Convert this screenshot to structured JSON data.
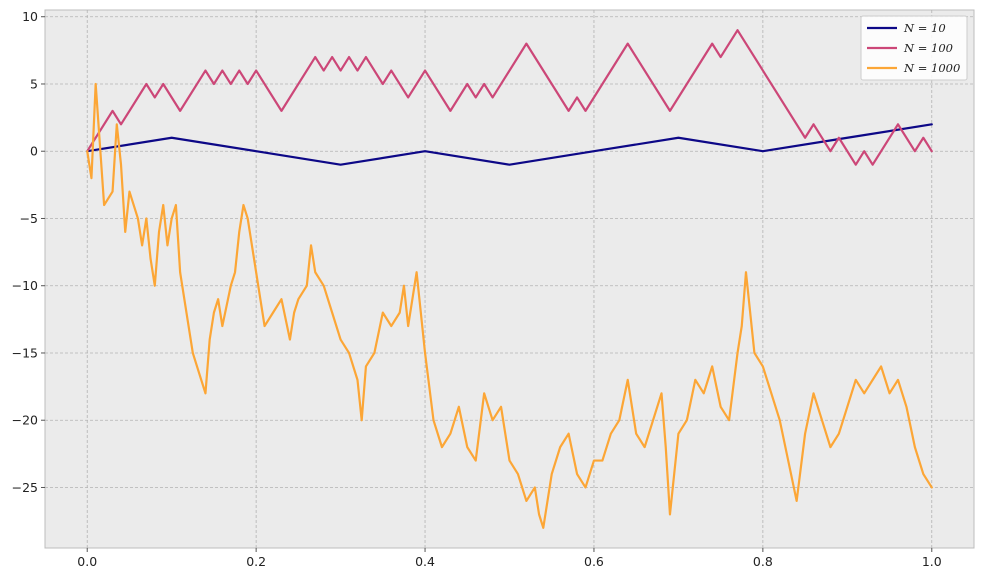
{
  "chart_data": {
    "type": "line",
    "title": "",
    "xlabel": "",
    "ylabel": "",
    "xlim": [
      -0.05,
      1.05
    ],
    "ylim": [
      -29.5,
      10.5
    ],
    "xticks": [
      0.0,
      0.2,
      0.4,
      0.6,
      0.8,
      1.0
    ],
    "xtick_labels": [
      "0.0",
      "0.2",
      "0.4",
      "0.6",
      "0.8",
      "1.0"
    ],
    "yticks": [
      10,
      5,
      0,
      -5,
      -10,
      -15,
      -20,
      -25
    ],
    "ytick_labels": [
      "10",
      "5",
      "0",
      "−5",
      "−10",
      "−15",
      "−20",
      "−25"
    ],
    "grid": true,
    "legend_position": "top-right",
    "series": [
      {
        "name": "N=10",
        "label": "N = 10",
        "color": "#0d0887",
        "x": [
          0,
          0.1,
          0.2,
          0.3,
          0.4,
          0.5,
          0.6,
          0.7,
          0.8,
          0.9,
          1.0
        ],
        "y": [
          0,
          1,
          0,
          -1,
          0,
          -1,
          0,
          1,
          0,
          1,
          2
        ]
      },
      {
        "name": "N=100",
        "label": "N = 100",
        "color": "#cc4778",
        "x": [
          0,
          0.03,
          0.04,
          0.07,
          0.08,
          0.09,
          0.11,
          0.14,
          0.15,
          0.16,
          0.17,
          0.18,
          0.19,
          0.2,
          0.23,
          0.27,
          0.28,
          0.29,
          0.3,
          0.31,
          0.32,
          0.33,
          0.35,
          0.36,
          0.38,
          0.4,
          0.43,
          0.45,
          0.46,
          0.47,
          0.48,
          0.52,
          0.57,
          0.58,
          0.59,
          0.64,
          0.69,
          0.74,
          0.75,
          0.77,
          0.85,
          0.86,
          0.88,
          0.89,
          0.91,
          0.92,
          0.93,
          0.96,
          0.98,
          0.99,
          1.0
        ],
        "y": [
          0,
          3,
          2,
          5,
          4,
          5,
          3,
          6,
          5,
          6,
          5,
          6,
          5,
          6,
          3,
          7,
          6,
          7,
          6,
          7,
          6,
          7,
          5,
          6,
          4,
          6,
          3,
          5,
          4,
          5,
          4,
          8,
          3,
          4,
          3,
          8,
          3,
          8,
          7,
          9,
          1,
          2,
          0,
          1,
          -1,
          0,
          -1,
          2,
          0,
          1,
          0
        ]
      },
      {
        "name": "N=1000",
        "label": "N = 1000",
        "color": "#fca636",
        "x": [
          0,
          0.005,
          0.01,
          0.02,
          0.03,
          0.035,
          0.04,
          0.045,
          0.05,
          0.06,
          0.065,
          0.07,
          0.075,
          0.08,
          0.085,
          0.09,
          0.095,
          0.1,
          0.105,
          0.11,
          0.12,
          0.125,
          0.13,
          0.14,
          0.145,
          0.15,
          0.155,
          0.16,
          0.17,
          0.175,
          0.18,
          0.185,
          0.19,
          0.2,
          0.205,
          0.21,
          0.22,
          0.23,
          0.24,
          0.245,
          0.25,
          0.26,
          0.265,
          0.27,
          0.28,
          0.29,
          0.3,
          0.31,
          0.32,
          0.325,
          0.33,
          0.34,
          0.35,
          0.36,
          0.37,
          0.375,
          0.38,
          0.39,
          0.4,
          0.41,
          0.42,
          0.43,
          0.44,
          0.45,
          0.46,
          0.47,
          0.48,
          0.49,
          0.5,
          0.51,
          0.52,
          0.53,
          0.535,
          0.54,
          0.55,
          0.56,
          0.57,
          0.58,
          0.59,
          0.6,
          0.61,
          0.62,
          0.63,
          0.64,
          0.65,
          0.66,
          0.67,
          0.68,
          0.685,
          0.69,
          0.7,
          0.71,
          0.72,
          0.73,
          0.74,
          0.75,
          0.76,
          0.77,
          0.775,
          0.78,
          0.79,
          0.8,
          0.81,
          0.82,
          0.83,
          0.84,
          0.85,
          0.86,
          0.87,
          0.88,
          0.89,
          0.9,
          0.91,
          0.92,
          0.93,
          0.94,
          0.95,
          0.96,
          0.97,
          0.98,
          0.99,
          1.0
        ],
        "y": [
          0,
          -2,
          5,
          -4,
          -3,
          2,
          -1,
          -6,
          -3,
          -5,
          -7,
          -5,
          -8,
          -10,
          -6,
          -4,
          -7,
          -5,
          -4,
          -9,
          -13,
          -15,
          -16,
          -18,
          -14,
          -12,
          -11,
          -13,
          -10,
          -9,
          -6,
          -4,
          -5,
          -9,
          -11,
          -13,
          -12,
          -11,
          -14,
          -12,
          -11,
          -10,
          -7,
          -9,
          -10,
          -12,
          -14,
          -15,
          -17,
          -20,
          -16,
          -15,
          -12,
          -13,
          -12,
          -10,
          -13,
          -9,
          -15,
          -20,
          -22,
          -21,
          -19,
          -22,
          -23,
          -18,
          -20,
          -19,
          -23,
          -24,
          -26,
          -25,
          -27,
          -28,
          -24,
          -22,
          -21,
          -24,
          -25,
          -23,
          -23,
          -21,
          -20,
          -17,
          -21,
          -22,
          -20,
          -18,
          -22,
          -27,
          -21,
          -20,
          -17,
          -18,
          -16,
          -19,
          -20,
          -15,
          -13,
          -9,
          -15,
          -16,
          -18,
          -20,
          -23,
          -26,
          -21,
          -18,
          -20,
          -22,
          -21,
          -19,
          -17,
          -18,
          -17,
          -16,
          -18,
          -17,
          -19,
          -22,
          -24,
          -25
        ]
      }
    ]
  }
}
